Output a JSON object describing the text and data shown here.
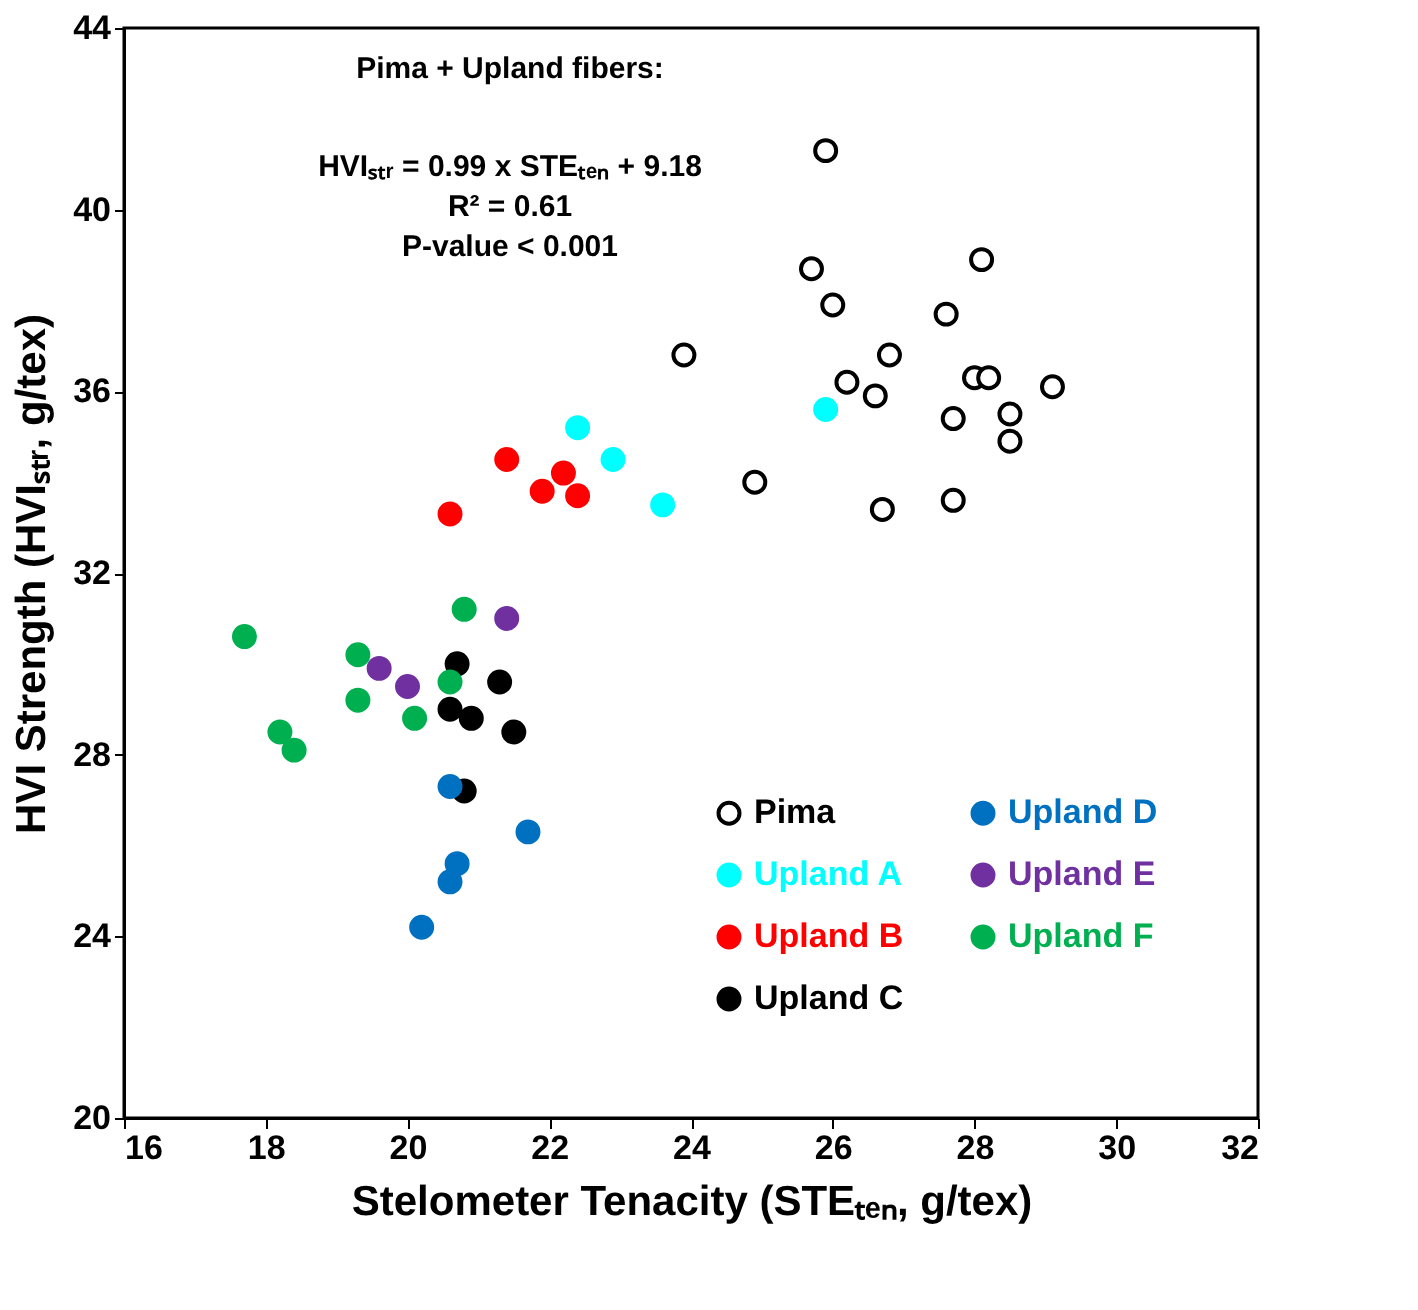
{
  "chart_data": {
    "type": "scatter",
    "xlabel": "Stelometer Tenacity (STEₜₑₙ, g/tex)",
    "ylabel": "HVI Strength (HVIₛₜᵣ, g/tex)",
    "annotations": [
      "Pima + Upland fibers:",
      "HVIₛₜᵣ = 0.99 x STEₜₑₙ + 9.18",
      "R² = 0.61",
      "P-value < 0.001"
    ],
    "xlim": [
      16,
      32
    ],
    "xticks": [
      16,
      18,
      20,
      22,
      24,
      26,
      28,
      30,
      32
    ],
    "ylim": [
      20,
      44
    ],
    "yticks": [
      20,
      24,
      28,
      32,
      36,
      40,
      44
    ],
    "grid": false,
    "legend": "bottom right",
    "marker": "circle",
    "series": [
      {
        "name": "Pima",
        "color": "#000000",
        "x": [
          25.9,
          25.7,
          28.1,
          26.0,
          27.6,
          23.9,
          26.8,
          26.2,
          28.0,
          28.2,
          29.1,
          26.6,
          28.5,
          27.7,
          28.5,
          24.9,
          26.7,
          27.7
        ],
        "values": [
          41.3,
          38.7,
          38.9,
          37.9,
          37.7,
          36.8,
          36.8,
          36.2,
          36.3,
          36.3,
          36.1,
          35.9,
          35.5,
          35.4,
          34.9,
          34.0,
          33.4,
          33.6
        ]
      },
      {
        "name": "Upland A",
        "color": "#00ffff",
        "x": [
          25.9,
          22.4,
          22.9,
          23.6
        ],
        "values": [
          35.6,
          35.2,
          34.5,
          33.5
        ]
      },
      {
        "name": "Upland B",
        "color": "#ff0000",
        "x": [
          21.4,
          22.2,
          21.9,
          22.4,
          20.6
        ],
        "values": [
          34.5,
          34.2,
          33.8,
          33.7,
          33.3
        ]
      },
      {
        "name": "Upland C",
        "color": "#000000",
        "x": [
          20.7,
          21.3,
          20.6,
          20.9,
          21.5,
          20.8
        ],
        "values": [
          30.0,
          29.6,
          29.0,
          28.8,
          28.5,
          27.2
        ]
      },
      {
        "name": "Upland D",
        "color": "#0070c0",
        "x": [
          20.6,
          21.7,
          20.7,
          20.6,
          20.2
        ],
        "values": [
          27.3,
          26.3,
          25.6,
          25.2,
          24.2
        ]
      },
      {
        "name": "Upland E",
        "color": "#7030a0",
        "x": [
          21.4,
          19.6,
          20.0
        ],
        "values": [
          31.0,
          29.9,
          29.5
        ]
      },
      {
        "name": "Upland F",
        "color": "#00b050",
        "x": [
          17.7,
          20.8,
          19.3,
          19.3,
          20.6,
          20.1,
          18.2,
          18.4
        ],
        "values": [
          30.6,
          31.2,
          30.2,
          29.2,
          29.6,
          28.8,
          28.5,
          28.1
        ]
      }
    ]
  }
}
